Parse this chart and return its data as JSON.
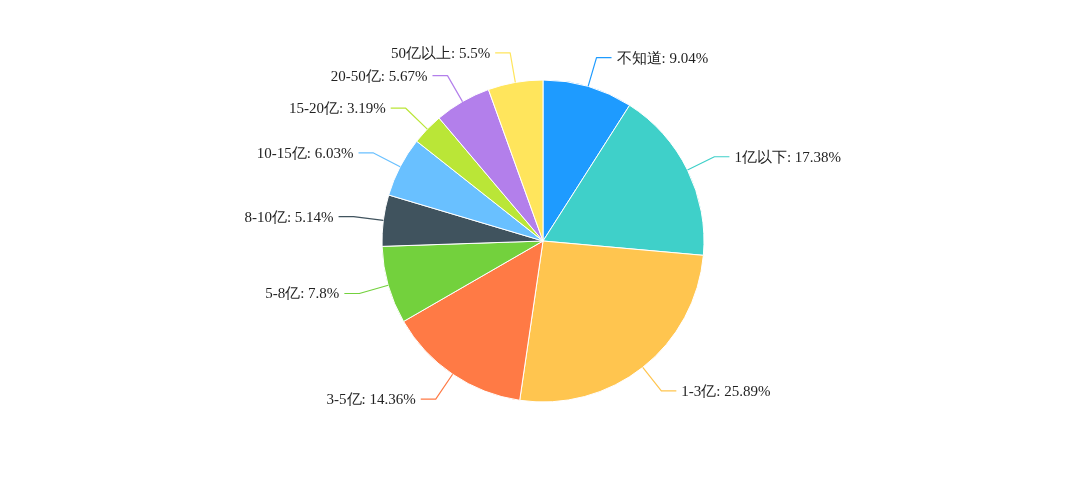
{
  "chart_data": {
    "type": "pie",
    "categories": [
      "不知道",
      "1亿以下",
      "1-3亿",
      "3-5亿",
      "5-8亿",
      "8-10亿",
      "10-15亿",
      "15-20亿",
      "20-50亿",
      "50亿以上"
    ],
    "values": [
      9.04,
      17.38,
      25.89,
      14.36,
      7.8,
      5.14,
      6.03,
      3.19,
      5.67,
      5.5
    ],
    "value_labels": [
      "9.04%",
      "17.38%",
      "25.89%",
      "14.36%",
      "7.8%",
      "5.14%",
      "6.03%",
      "3.19%",
      "5.67%",
      "5.5%"
    ],
    "colors": [
      "#1e9bff",
      "#3fd0c9",
      "#ffc54f",
      "#ff7a45",
      "#73d13d",
      "#40535e",
      "#69c0ff",
      "#bae637",
      "#b37feb",
      "#ffe55c"
    ]
  }
}
